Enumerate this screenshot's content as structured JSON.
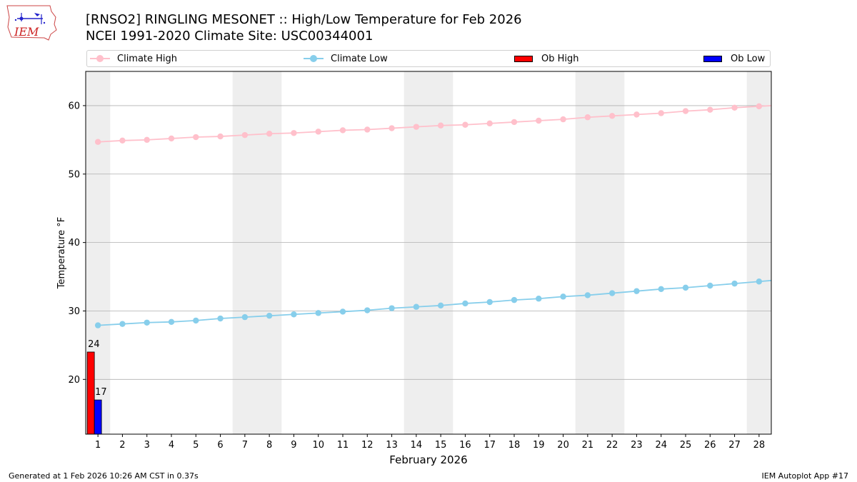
{
  "header": {
    "title_line1": "[RNSO2] RINGLING MESONET :: High/Low Temperature for Feb 2026",
    "title_line2": "NCEI 1991-2020 Climate Site: USC00344001"
  },
  "logo": {
    "text": "IEM"
  },
  "footer": {
    "left": "Generated at 1 Feb 2026 10:26 AM CST in 0.37s",
    "right": "IEM Autoplot App #17"
  },
  "colors": {
    "climate_high": "#ffc0cb",
    "climate_low": "#87ceeb",
    "ob_high": "#ff0000",
    "ob_low": "#0000ff",
    "weekend_band": "#eeeeee",
    "grid": "#b0b0b0"
  },
  "chart_data": {
    "type": "line",
    "title": "[RNSO2] RINGLING MESONET :: High/Low Temperature for Feb 2026",
    "subtitle": "NCEI 1991-2020 Climate Site: USC00344001",
    "xlabel": "February 2026",
    "ylabel": "Temperature °F",
    "xlim": [
      0.5,
      28.5
    ],
    "ylim": [
      12,
      65
    ],
    "x_ticks": [
      1,
      2,
      3,
      4,
      5,
      6,
      7,
      8,
      9,
      10,
      11,
      12,
      13,
      14,
      15,
      16,
      17,
      18,
      19,
      20,
      21,
      22,
      23,
      24,
      25,
      26,
      27,
      28
    ],
    "y_ticks": [
      20,
      30,
      40,
      50,
      60
    ],
    "grid": "horizontal",
    "legend_position": "top",
    "weekend_bands": [
      [
        0.5,
        1.5
      ],
      [
        6.5,
        8.5
      ],
      [
        13.5,
        15.5
      ],
      [
        20.5,
        22.5
      ],
      [
        27.5,
        28.5
      ]
    ],
    "series": [
      {
        "name": "Climate High",
        "kind": "line",
        "color": "#ffc0cb",
        "x": [
          1,
          2,
          3,
          4,
          5,
          6,
          7,
          8,
          9,
          10,
          11,
          12,
          13,
          14,
          15,
          16,
          17,
          18,
          19,
          20,
          21,
          22,
          23,
          24,
          25,
          26,
          27,
          28
        ],
        "values": [
          54.7,
          54.9,
          55.0,
          55.2,
          55.4,
          55.5,
          55.7,
          55.9,
          56.0,
          56.2,
          56.4,
          56.5,
          56.7,
          56.9,
          57.1,
          57.2,
          57.4,
          57.6,
          57.8,
          58.0,
          58.3,
          58.5,
          58.7,
          58.9,
          59.2,
          59.4,
          59.7,
          59.9
        ]
      },
      {
        "name": "Climate Low",
        "kind": "line",
        "color": "#87ceeb",
        "x": [
          1,
          2,
          3,
          4,
          5,
          6,
          7,
          8,
          9,
          10,
          11,
          12,
          13,
          14,
          15,
          16,
          17,
          18,
          19,
          20,
          21,
          22,
          23,
          24,
          25,
          26,
          27,
          28
        ],
        "values": [
          27.9,
          28.1,
          28.3,
          28.4,
          28.6,
          28.9,
          29.1,
          29.3,
          29.5,
          29.7,
          29.9,
          30.1,
          30.4,
          30.6,
          30.8,
          31.1,
          31.3,
          31.6,
          31.8,
          32.1,
          32.3,
          32.6,
          32.9,
          33.2,
          33.4,
          33.7,
          34.0,
          34.3
        ]
      },
      {
        "name": "Ob High",
        "kind": "bar",
        "color": "#ff0000",
        "x": [
          1
        ],
        "values": [
          24
        ],
        "labels": [
          "24"
        ]
      },
      {
        "name": "Ob Low",
        "kind": "bar",
        "color": "#0000ff",
        "x": [
          1
        ],
        "values": [
          17
        ],
        "labels": [
          "17"
        ]
      }
    ]
  }
}
